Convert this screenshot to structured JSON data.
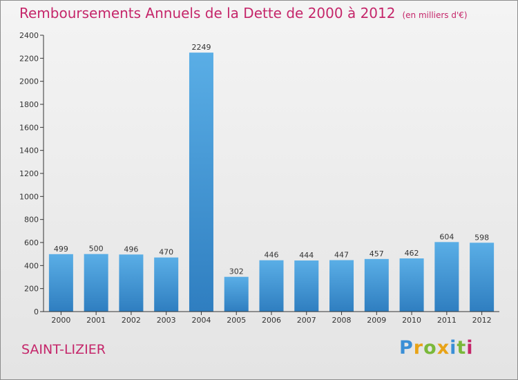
{
  "title": "Remboursements Annuels de la Dette de 2000 à 2012",
  "subtitle": "(en milliers d'€)",
  "city": "SAINT-LIZIER",
  "logo": {
    "letters": [
      "P",
      "r",
      "o",
      "x",
      "i",
      "t",
      "i"
    ],
    "colors": [
      "#3a8fd6",
      "#e8a317",
      "#7ab83a",
      "#e8a317",
      "#3a8fd6",
      "#7ab83a",
      "#c5266a"
    ]
  },
  "colors": {
    "accent": "#c5266a",
    "bar_top": "#5aaee6",
    "bar_bottom": "#2f7ec0",
    "axis": "#333333",
    "grid": "#cfcfcf"
  },
  "chart_data": {
    "type": "bar",
    "title": "Remboursements Annuels de la Dette de 2000 à 2012",
    "subtitle": "(en milliers d'€)",
    "categories": [
      "2000",
      "2001",
      "2002",
      "2003",
      "2004",
      "2005",
      "2006",
      "2007",
      "2008",
      "2009",
      "2010",
      "2011",
      "2012"
    ],
    "values": [
      499,
      500,
      496,
      470,
      2249,
      302,
      446,
      444,
      447,
      457,
      462,
      604,
      598
    ],
    "ylim": [
      0,
      2400
    ],
    "yticks": [
      0,
      200,
      400,
      600,
      800,
      1000,
      1200,
      1400,
      1600,
      1800,
      2000,
      2200,
      2400
    ],
    "xlabel": "",
    "ylabel": "",
    "grid": false,
    "legend": "none"
  }
}
